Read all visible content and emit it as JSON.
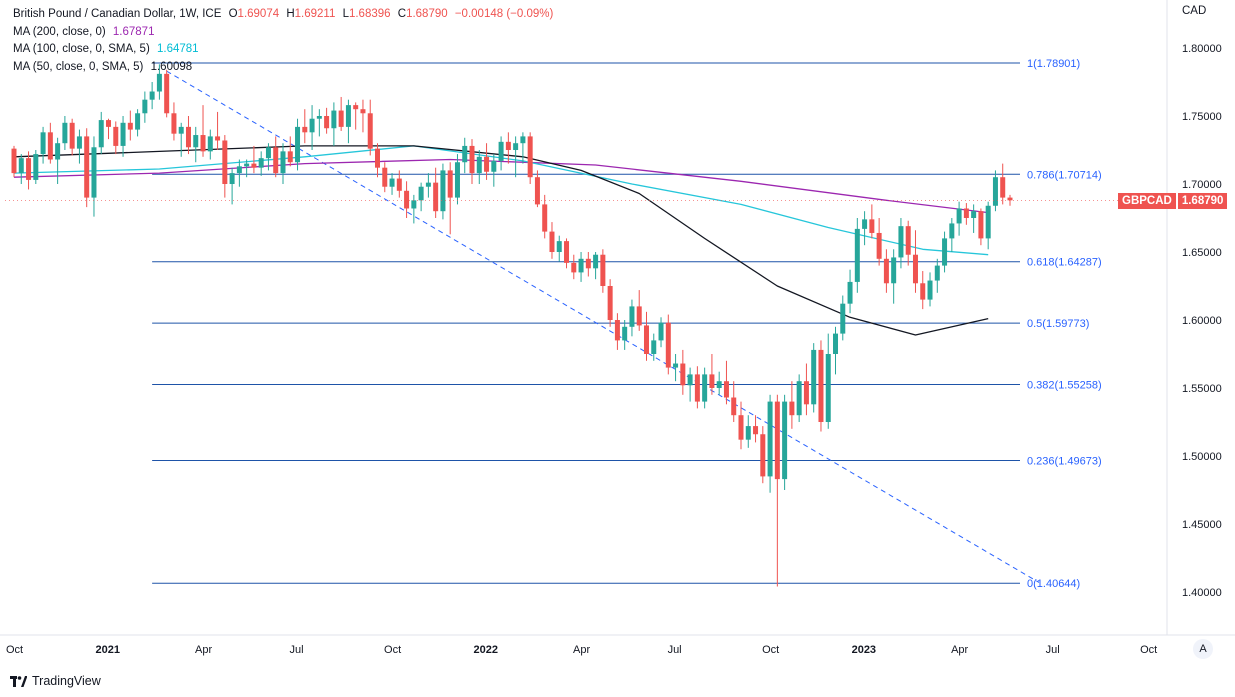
{
  "header": {
    "symbol_title": "British Pound / Canadian Dollar, 1W, ICE",
    "open_label": "O",
    "open": "1.69074",
    "high_label": "H",
    "high": "1.69211",
    "low_label": "L",
    "low": "1.68396",
    "close_label": "C",
    "close": "1.68790",
    "change": "−0.00148 (−0.09%)",
    "ma200_label": "MA (200, close, 0)",
    "ma200_value": "1.67871",
    "ma100_label": "MA (100, close, 0, SMA, 5)",
    "ma100_value": "1.64781",
    "ma50_label": "MA (50, close, 0, SMA, 5)",
    "ma50_value": "1.60098"
  },
  "currency": "CAD",
  "price_tag": {
    "ticker": "GBPCAD",
    "value": "1.68790"
  },
  "auto_button": "A",
  "brand": "TradingView",
  "colors": {
    "up": "#26a69a",
    "down": "#ef5350",
    "ma200": "#9c27b0",
    "ma100": "#26c6da",
    "ma50": "#131722",
    "fib": "#1e53a8",
    "trend": "#2962ff"
  },
  "chart_data": {
    "type": "candlestick",
    "x_unit": "weekly bars, first bar = week of 2020-10-05",
    "ylim": [
      1.375,
      1.835
    ],
    "y_ticks": [
      "1.80000",
      "1.75000",
      "1.70000",
      "1.65000",
      "1.60000",
      "1.55000",
      "1.50000",
      "1.45000",
      "1.40000"
    ],
    "x_ticks": [
      {
        "label": "Oct",
        "week": 0
      },
      {
        "label": "2021",
        "week": 13
      },
      {
        "label": "Apr",
        "week": 26
      },
      {
        "label": "Jul",
        "week": 39
      },
      {
        "label": "Oct",
        "week": 52
      },
      {
        "label": "2022",
        "week": 65
      },
      {
        "label": "Apr",
        "week": 78
      },
      {
        "label": "Jul",
        "week": 91
      },
      {
        "label": "Oct",
        "week": 104
      },
      {
        "label": "2023",
        "week": 117
      },
      {
        "label": "Apr",
        "week": 130
      },
      {
        "label": "Jul",
        "week": 143
      },
      {
        "label": "Oct",
        "week": 156
      }
    ],
    "x_tick_bold": [
      "2021",
      "2022",
      "2023"
    ],
    "fibonacci": [
      {
        "label": "1(1.78901)",
        "level": 1.78901
      },
      {
        "label": "0.786(1.70714)",
        "level": 1.70714
      },
      {
        "label": "0.618(1.64287)",
        "level": 1.64287
      },
      {
        "label": "0.5(1.59773)",
        "level": 1.59773
      },
      {
        "label": "0.382(1.55258)",
        "level": 1.55258
      },
      {
        "label": "0.236(1.49673)",
        "level": 1.49673
      },
      {
        "label": "0(1.40644)",
        "level": 1.40644
      }
    ],
    "fib_start_week": 19,
    "trendline": {
      "from": {
        "week": 21,
        "price": 1.783
      },
      "to": {
        "week": 141,
        "price": 1.407
      }
    },
    "ohlc": [
      [
        1.726,
        1.728,
        1.705,
        1.708
      ],
      [
        1.708,
        1.722,
        1.7,
        1.719
      ],
      [
        1.719,
        1.724,
        1.696,
        1.703
      ],
      [
        1.703,
        1.725,
        1.7,
        1.722
      ],
      [
        1.722,
        1.742,
        1.715,
        1.738
      ],
      [
        1.738,
        1.745,
        1.715,
        1.718
      ],
      [
        1.718,
        1.734,
        1.7,
        1.73
      ],
      [
        1.73,
        1.75,
        1.725,
        1.745
      ],
      [
        1.745,
        1.748,
        1.721,
        1.726
      ],
      [
        1.726,
        1.74,
        1.715,
        1.735
      ],
      [
        1.735,
        1.741,
        1.683,
        1.69
      ],
      [
        1.69,
        1.735,
        1.676,
        1.727
      ],
      [
        1.727,
        1.753,
        1.722,
        1.747
      ],
      [
        1.747,
        1.748,
        1.733,
        1.742
      ],
      [
        1.742,
        1.746,
        1.722,
        1.728
      ],
      [
        1.728,
        1.75,
        1.72,
        1.745
      ],
      [
        1.745,
        1.754,
        1.732,
        1.74
      ],
      [
        1.74,
        1.755,
        1.735,
        1.752
      ],
      [
        1.752,
        1.768,
        1.745,
        1.762
      ],
      [
        1.762,
        1.775,
        1.755,
        1.768
      ],
      [
        1.768,
        1.788,
        1.762,
        1.781
      ],
      [
        1.781,
        1.784,
        1.749,
        1.752
      ],
      [
        1.752,
        1.76,
        1.732,
        1.737
      ],
      [
        1.737,
        1.745,
        1.72,
        1.742
      ],
      [
        1.742,
        1.75,
        1.722,
        1.727
      ],
      [
        1.727,
        1.742,
        1.716,
        1.736
      ],
      [
        1.736,
        1.758,
        1.72,
        1.724
      ],
      [
        1.724,
        1.74,
        1.718,
        1.735
      ],
      [
        1.735,
        1.753,
        1.725,
        1.732
      ],
      [
        1.732,
        1.736,
        1.69,
        1.7
      ],
      [
        1.7,
        1.712,
        1.685,
        1.708
      ],
      [
        1.708,
        1.718,
        1.698,
        1.713
      ],
      [
        1.713,
        1.718,
        1.705,
        1.715
      ],
      [
        1.715,
        1.728,
        1.708,
        1.712
      ],
      [
        1.712,
        1.724,
        1.706,
        1.719
      ],
      [
        1.719,
        1.73,
        1.71,
        1.727
      ],
      [
        1.727,
        1.735,
        1.705,
        1.708
      ],
      [
        1.708,
        1.73,
        1.7,
        1.724
      ],
      [
        1.724,
        1.735,
        1.713,
        1.716
      ],
      [
        1.716,
        1.748,
        1.71,
        1.742
      ],
      [
        1.742,
        1.755,
        1.73,
        1.738
      ],
      [
        1.738,
        1.758,
        1.725,
        1.748
      ],
      [
        1.748,
        1.755,
        1.735,
        1.75
      ],
      [
        1.75,
        1.756,
        1.737,
        1.741
      ],
      [
        1.741,
        1.76,
        1.728,
        1.754
      ],
      [
        1.754,
        1.764,
        1.739,
        1.742
      ],
      [
        1.742,
        1.762,
        1.73,
        1.758
      ],
      [
        1.758,
        1.76,
        1.74,
        1.755
      ],
      [
        1.755,
        1.762,
        1.738,
        1.752
      ],
      [
        1.752,
        1.762,
        1.721,
        1.726
      ],
      [
        1.726,
        1.73,
        1.705,
        1.712
      ],
      [
        1.712,
        1.716,
        1.694,
        1.698
      ],
      [
        1.698,
        1.708,
        1.692,
        1.704
      ],
      [
        1.704,
        1.71,
        1.69,
        1.695
      ],
      [
        1.695,
        1.702,
        1.675,
        1.682
      ],
      [
        1.682,
        1.692,
        1.671,
        1.688
      ],
      [
        1.688,
        1.701,
        1.68,
        1.698
      ],
      [
        1.698,
        1.708,
        1.69,
        1.701
      ],
      [
        1.701,
        1.712,
        1.675,
        1.68
      ],
      [
        1.68,
        1.715,
        1.674,
        1.71
      ],
      [
        1.71,
        1.716,
        1.663,
        1.69
      ],
      [
        1.69,
        1.722,
        1.685,
        1.716
      ],
      [
        1.716,
        1.734,
        1.708,
        1.728
      ],
      [
        1.728,
        1.733,
        1.7,
        1.708
      ],
      [
        1.708,
        1.725,
        1.7,
        1.72
      ],
      [
        1.72,
        1.73,
        1.703,
        1.709
      ],
      [
        1.709,
        1.722,
        1.698,
        1.717
      ],
      [
        1.717,
        1.735,
        1.71,
        1.731
      ],
      [
        1.731,
        1.738,
        1.715,
        1.725
      ],
      [
        1.725,
        1.735,
        1.705,
        1.73
      ],
      [
        1.73,
        1.738,
        1.715,
        1.735
      ],
      [
        1.735,
        1.738,
        1.7,
        1.705
      ],
      [
        1.705,
        1.71,
        1.683,
        1.685
      ],
      [
        1.685,
        1.692,
        1.66,
        1.665
      ],
      [
        1.665,
        1.672,
        1.645,
        1.65
      ],
      [
        1.65,
        1.662,
        1.643,
        1.658
      ],
      [
        1.658,
        1.66,
        1.638,
        1.642
      ],
      [
        1.642,
        1.648,
        1.63,
        1.635
      ],
      [
        1.635,
        1.65,
        1.628,
        1.645
      ],
      [
        1.645,
        1.65,
        1.632,
        1.638
      ],
      [
        1.638,
        1.65,
        1.63,
        1.648
      ],
      [
        1.648,
        1.652,
        1.62,
        1.625
      ],
      [
        1.625,
        1.63,
        1.595,
        1.6
      ],
      [
        1.6,
        1.605,
        1.578,
        1.585
      ],
      [
        1.585,
        1.6,
        1.578,
        1.595
      ],
      [
        1.595,
        1.615,
        1.588,
        1.61
      ],
      [
        1.61,
        1.622,
        1.592,
        1.596
      ],
      [
        1.596,
        1.606,
        1.57,
        1.575
      ],
      [
        1.575,
        1.59,
        1.57,
        1.585
      ],
      [
        1.585,
        1.602,
        1.58,
        1.598
      ],
      [
        1.598,
        1.604,
        1.56,
        1.565
      ],
      [
        1.565,
        1.575,
        1.555,
        1.568
      ],
      [
        1.568,
        1.578,
        1.545,
        1.552
      ],
      [
        1.552,
        1.565,
        1.54,
        1.56
      ],
      [
        1.56,
        1.566,
        1.535,
        1.54
      ],
      [
        1.54,
        1.565,
        1.535,
        1.56
      ],
      [
        1.56,
        1.575,
        1.545,
        1.55
      ],
      [
        1.55,
        1.562,
        1.545,
        1.555
      ],
      [
        1.555,
        1.57,
        1.538,
        1.543
      ],
      [
        1.543,
        1.555,
        1.525,
        1.53
      ],
      [
        1.53,
        1.54,
        1.505,
        1.512
      ],
      [
        1.512,
        1.53,
        1.506,
        1.522
      ],
      [
        1.522,
        1.53,
        1.51,
        1.516
      ],
      [
        1.516,
        1.522,
        1.48,
        1.485
      ],
      [
        1.485,
        1.545,
        1.473,
        1.54
      ],
      [
        1.54,
        1.545,
        1.404,
        1.483
      ],
      [
        1.483,
        1.545,
        1.475,
        1.54
      ],
      [
        1.54,
        1.555,
        1.52,
        1.53
      ],
      [
        1.53,
        1.56,
        1.525,
        1.555
      ],
      [
        1.555,
        1.568,
        1.53,
        1.538
      ],
      [
        1.538,
        1.583,
        1.532,
        1.578
      ],
      [
        1.578,
        1.585,
        1.518,
        1.525
      ],
      [
        1.525,
        1.59,
        1.52,
        1.575
      ],
      [
        1.575,
        1.595,
        1.56,
        1.59
      ],
      [
        1.59,
        1.618,
        1.585,
        1.612
      ],
      [
        1.612,
        1.637,
        1.605,
        1.628
      ],
      [
        1.628,
        1.675,
        1.62,
        1.667
      ],
      [
        1.667,
        1.68,
        1.655,
        1.674
      ],
      [
        1.674,
        1.685,
        1.66,
        1.664
      ],
      [
        1.664,
        1.675,
        1.64,
        1.645
      ],
      [
        1.645,
        1.652,
        1.62,
        1.627
      ],
      [
        1.627,
        1.652,
        1.612,
        1.646
      ],
      [
        1.646,
        1.675,
        1.638,
        1.669
      ],
      [
        1.669,
        1.673,
        1.64,
        1.648
      ],
      [
        1.648,
        1.666,
        1.62,
        1.627
      ],
      [
        1.627,
        1.636,
        1.608,
        1.615
      ],
      [
        1.615,
        1.635,
        1.61,
        1.629
      ],
      [
        1.629,
        1.645,
        1.62,
        1.64
      ],
      [
        1.64,
        1.665,
        1.635,
        1.66
      ],
      [
        1.66,
        1.675,
        1.65,
        1.671
      ],
      [
        1.671,
        1.687,
        1.662,
        1.682
      ],
      [
        1.682,
        1.686,
        1.67,
        1.675
      ],
      [
        1.675,
        1.685,
        1.664,
        1.68
      ],
      [
        1.68,
        1.682,
        1.655,
        1.66
      ],
      [
        1.66,
        1.687,
        1.652,
        1.684
      ],
      [
        1.684,
        1.71,
        1.68,
        1.705
      ],
      [
        1.705,
        1.715,
        1.685,
        1.69
      ],
      [
        1.69,
        1.692,
        1.684,
        1.688
      ]
    ],
    "ma200": [
      [
        0,
        1.705
      ],
      [
        20,
        1.708
      ],
      [
        40,
        1.715
      ],
      [
        60,
        1.718
      ],
      [
        80,
        1.714
      ],
      [
        100,
        1.702
      ],
      [
        120,
        1.688
      ],
      [
        134,
        1.679
      ]
    ],
    "ma100": [
      [
        0,
        1.708
      ],
      [
        20,
        1.711
      ],
      [
        40,
        1.72
      ],
      [
        55,
        1.728
      ],
      [
        70,
        1.717
      ],
      [
        85,
        1.7
      ],
      [
        100,
        1.685
      ],
      [
        112,
        1.668
      ],
      [
        125,
        1.652
      ],
      [
        134,
        1.648
      ]
    ],
    "ma50": [
      [
        0,
        1.72
      ],
      [
        20,
        1.724
      ],
      [
        40,
        1.728
      ],
      [
        55,
        1.728
      ],
      [
        70,
        1.72
      ],
      [
        78,
        1.71
      ],
      [
        86,
        1.693
      ],
      [
        95,
        1.66
      ],
      [
        105,
        1.625
      ],
      [
        115,
        1.602
      ],
      [
        124,
        1.589
      ],
      [
        134,
        1.601
      ]
    ]
  }
}
